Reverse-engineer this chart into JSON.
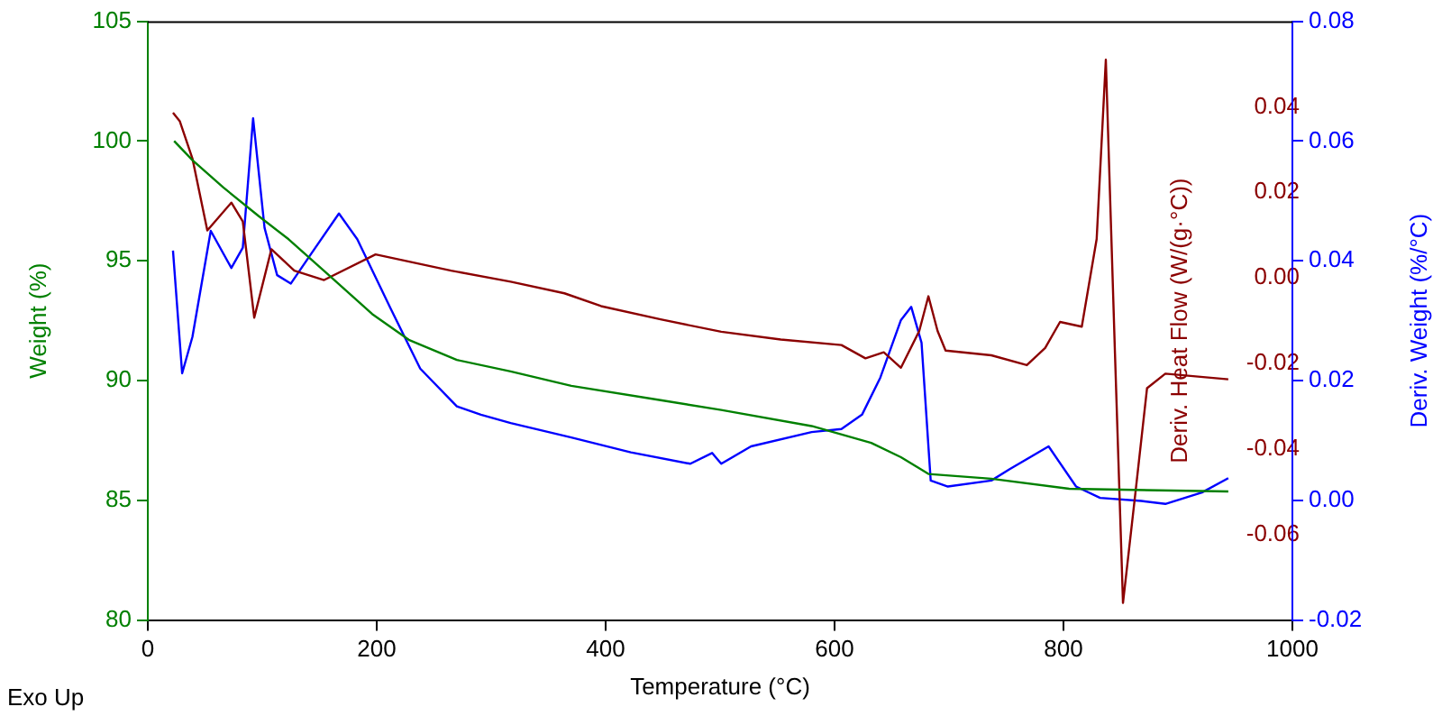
{
  "chart_data": {
    "type": "line",
    "xlabel": "Temperature (°C)",
    "ylabel": "Weight (%)",
    "y2label": "Deriv. Heat Flow (W/(g·°C))",
    "y3label": "Deriv. Weight (%/°C)",
    "xlim": [
      0,
      1000
    ],
    "xticks": [
      0,
      200,
      400,
      600,
      800,
      1000
    ],
    "ylim": [
      80,
      105
    ],
    "yticks": [
      80,
      85,
      90,
      95,
      100,
      105
    ],
    "y2lim": [
      -0.08,
      0.06
    ],
    "y2ticks": [
      {
        "value": -0.06,
        "label": "-0.06"
      },
      {
        "value": -0.04,
        "label": "-0.04"
      },
      {
        "value": -0.02,
        "label": "-0.02"
      },
      {
        "value": 0,
        "label": "0.00"
      },
      {
        "value": 0.02,
        "label": "0.02"
      },
      {
        "value": 0.04,
        "label": "0.04"
      }
    ],
    "y3lim": [
      -0.02,
      0.08
    ],
    "y3ticks": [
      {
        "value": -0.02,
        "label": "-0.02"
      },
      {
        "value": 0,
        "label": "0.00"
      },
      {
        "value": 0.02,
        "label": "0.02"
      },
      {
        "value": 0.04,
        "label": "0.04"
      },
      {
        "value": 0.06,
        "label": "0.06"
      },
      {
        "value": 0.08,
        "label": "0.08"
      }
    ],
    "grid": false,
    "legend": false,
    "marker": "none",
    "line_style": "solid",
    "annotations": [
      "Exo Up"
    ],
    "series": [
      {
        "color": "#008000",
        "x": [
          23,
          39,
          66,
          97,
          123,
          154,
          196,
          228,
          270,
          317,
          370,
          448,
          501,
          580,
          632,
          658,
          682,
          737,
          805,
          944
        ],
        "values": [
          100,
          99.2,
          98.06,
          96.86,
          95.9,
          94.58,
          92.78,
          91.7,
          90.86,
          90.38,
          89.78,
          89.18,
          88.77,
          88.1,
          87.4,
          86.8,
          86.1,
          85.9,
          85.48,
          85.37
        ]
      },
      {
        "color": "#8b0000",
        "axis": "y2",
        "x": [
          22,
          28,
          39,
          52,
          73,
          83,
          93,
          108,
          128,
          154,
          199,
          265,
          317,
          364,
          396,
          448,
          501,
          553,
          606,
          627,
          643,
          658,
          674,
          682,
          690,
          697,
          737,
          768,
          784,
          797,
          816,
          829,
          837,
          845,
          852,
          863,
          873,
          889,
          944
        ],
        "values": [
          0.0386,
          0.0366,
          0.0279,
          0.0111,
          0.0176,
          0.0132,
          -0.0093,
          0.0067,
          0.0017,
          -0.0005,
          0.0055,
          0.0017,
          -0.0009,
          -0.0036,
          -0.0066,
          -0.0097,
          -0.0126,
          -0.0144,
          -0.0157,
          -0.0188,
          -0.0174,
          -0.021,
          -0.0124,
          -0.0043,
          -0.0124,
          -0.017,
          -0.0181,
          -0.0204,
          -0.0164,
          -0.0103,
          -0.0114,
          0.0091,
          0.051,
          -0.0177,
          -0.076,
          -0.0499,
          -0.0258,
          -0.0224,
          -0.0237
        ]
      },
      {
        "color": "#0000ff",
        "axis": "y3",
        "x": [
          22,
          30,
          39,
          55,
          73,
          83,
          92,
          102,
          113,
          125,
          141,
          167,
          183,
          212,
          238,
          270,
          291,
          317,
          370,
          422,
          474,
          493,
          501,
          527,
          580,
          606,
          624,
          640,
          658,
          667,
          676,
          684,
          699,
          737,
          753,
          787,
          811,
          832,
          868,
          889,
          921,
          944
        ],
        "values": [
          0.0417,
          0.0212,
          0.0273,
          0.045,
          0.0388,
          0.0422,
          0.0638,
          0.0455,
          0.0376,
          0.0362,
          0.0407,
          0.0479,
          0.0436,
          0.0321,
          0.022,
          0.0157,
          0.0143,
          0.0129,
          0.0105,
          0.008,
          0.0061,
          0.0079,
          0.0061,
          0.009,
          0.0114,
          0.0119,
          0.0143,
          0.0205,
          0.0301,
          0.0323,
          0.0263,
          0.0033,
          0.0023,
          0.0033,
          0.0052,
          0.009,
          0.0023,
          0.0004,
          -0.0001,
          -0.0006,
          0.0013,
          0.0037
        ]
      }
    ]
  }
}
